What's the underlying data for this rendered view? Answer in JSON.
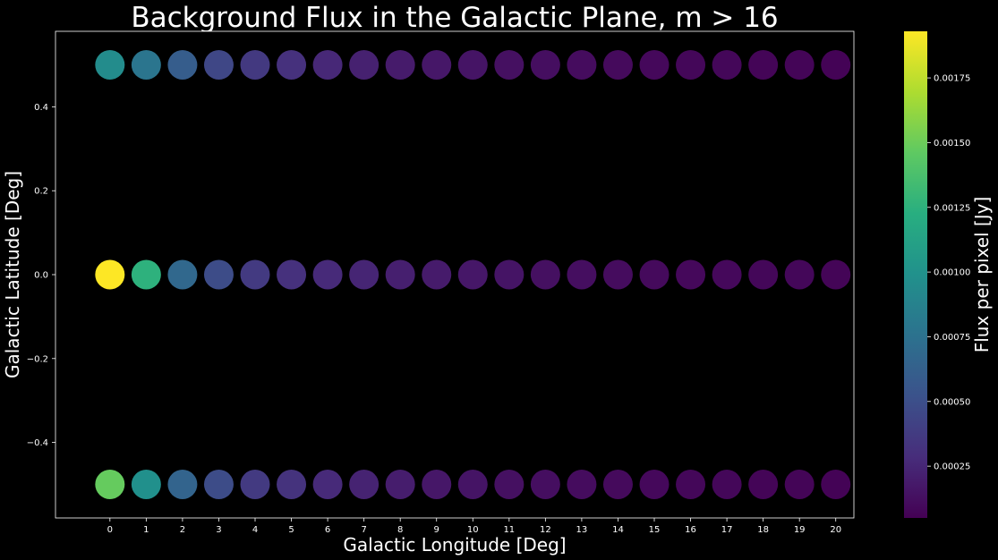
{
  "chart_data": {
    "type": "scatter",
    "title": "Background Flux in the Galactic Plane, m > 16",
    "xlabel": "Galactic Longitude [Deg]",
    "ylabel": "Galactic Latitude [Deg]",
    "xlim": [
      -1.5,
      20.5
    ],
    "ylim": [
      -0.58,
      0.58
    ],
    "x_ticks": [
      0,
      1,
      2,
      3,
      4,
      5,
      6,
      7,
      8,
      9,
      10,
      11,
      12,
      13,
      14,
      15,
      16,
      17,
      18,
      19,
      20
    ],
    "y_ticks": [
      -0.4,
      -0.2,
      0.0,
      0.2,
      0.4
    ],
    "y_tick_labels": [
      "−0.4",
      "−0.2",
      "0.0",
      "0.2",
      "0.4"
    ],
    "colormap": "viridis",
    "colorbar": {
      "label": "Flux per pixel [Jy]",
      "range": [
        5e-05,
        0.00193
      ],
      "ticks": [
        0.00025,
        0.0005,
        0.00075,
        0.001,
        0.00125,
        0.0015,
        0.00175
      ],
      "tick_labels": [
        "0.00025",
        "0.00050",
        "0.00075",
        "0.00100",
        "0.00125",
        "0.00150",
        "0.00175"
      ]
    },
    "series": [
      {
        "y": 0.5,
        "x": [
          0,
          1,
          2,
          3,
          4,
          5,
          6,
          7,
          8,
          9,
          10,
          11,
          12,
          13,
          14,
          15,
          16,
          17,
          18,
          19,
          20
        ],
        "values": [
          0.00095,
          0.00078,
          0.0006,
          0.00045,
          0.00036,
          0.00031,
          0.00026,
          0.00022,
          0.00019,
          0.00017,
          0.00015,
          0.00013,
          0.00012,
          0.00011,
          0.0001,
          9e-05,
          8e-05,
          8e-05,
          7e-05,
          7e-05,
          6e-05
        ]
      },
      {
        "y": 0.0,
        "x": [
          0,
          1,
          2,
          3,
          4,
          5,
          6,
          7,
          8,
          9,
          10,
          11,
          12,
          13,
          14,
          15,
          16,
          17,
          18,
          19,
          20
        ],
        "values": [
          0.00193,
          0.00125,
          0.00068,
          0.00048,
          0.00037,
          0.00031,
          0.00027,
          0.00024,
          0.00021,
          0.00019,
          0.00017,
          0.00015,
          0.00013,
          0.00012,
          0.00011,
          0.0001,
          9e-05,
          9e-05,
          8e-05,
          8e-05,
          7e-05
        ]
      },
      {
        "y": -0.5,
        "x": [
          0,
          1,
          2,
          3,
          4,
          5,
          6,
          7,
          8,
          9,
          10,
          11,
          12,
          13,
          14,
          15,
          16,
          17,
          18,
          19,
          20
        ],
        "values": [
          0.00148,
          0.00098,
          0.00065,
          0.00048,
          0.00037,
          0.00032,
          0.00027,
          0.00023,
          0.0002,
          0.00017,
          0.00015,
          0.00013,
          0.00012,
          0.00011,
          0.0001,
          9e-05,
          8e-05,
          8e-05,
          7e-05,
          7e-05,
          6e-05
        ]
      }
    ]
  }
}
